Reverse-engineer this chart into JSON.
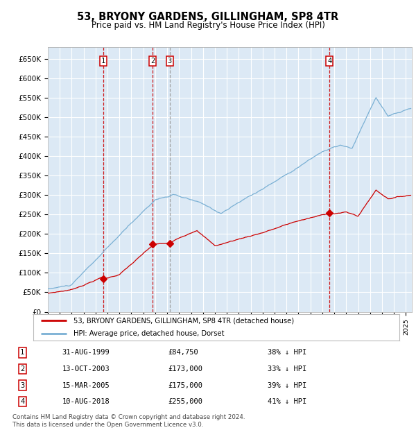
{
  "title": "53, BRYONY GARDENS, GILLINGHAM, SP8 4TR",
  "subtitle": "Price paid vs. HM Land Registry's House Price Index (HPI)",
  "plot_bg_color": "#dce9f5",
  "fig_bg_color": "#ffffff",
  "grid_color": "#ffffff",
  "ylim": [
    0,
    680000
  ],
  "yticks": [
    0,
    50000,
    100000,
    150000,
    200000,
    250000,
    300000,
    350000,
    400000,
    450000,
    500000,
    550000,
    600000,
    650000
  ],
  "ytick_labels": [
    "£0",
    "£50K",
    "£100K",
    "£150K",
    "£200K",
    "£250K",
    "£300K",
    "£350K",
    "£400K",
    "£450K",
    "£500K",
    "£550K",
    "£600K",
    "£650K"
  ],
  "xlim_start": 1995.0,
  "xlim_end": 2025.5,
  "sale_dates": [
    1999.664,
    2003.784,
    2005.204,
    2018.607
  ],
  "sale_prices": [
    84750,
    173000,
    175000,
    255000
  ],
  "sale_labels": [
    "1",
    "2",
    "3",
    "4"
  ],
  "sale_color": "#cc0000",
  "hpi_color": "#7ab0d4",
  "vline_colors": [
    "#cc0000",
    "#cc0000",
    "#999999",
    "#cc0000"
  ],
  "legend_label_red": "53, BRYONY GARDENS, GILLINGHAM, SP8 4TR (detached house)",
  "legend_label_blue": "HPI: Average price, detached house, Dorset",
  "table_rows": [
    [
      "1",
      "31-AUG-1999",
      "£84,750",
      "38% ↓ HPI"
    ],
    [
      "2",
      "13-OCT-2003",
      "£173,000",
      "33% ↓ HPI"
    ],
    [
      "3",
      "15-MAR-2005",
      "£175,000",
      "39% ↓ HPI"
    ],
    [
      "4",
      "10-AUG-2018",
      "£255,000",
      "41% ↓ HPI"
    ]
  ],
  "footnote": "Contains HM Land Registry data © Crown copyright and database right 2024.\nThis data is licensed under the Open Government Licence v3.0."
}
